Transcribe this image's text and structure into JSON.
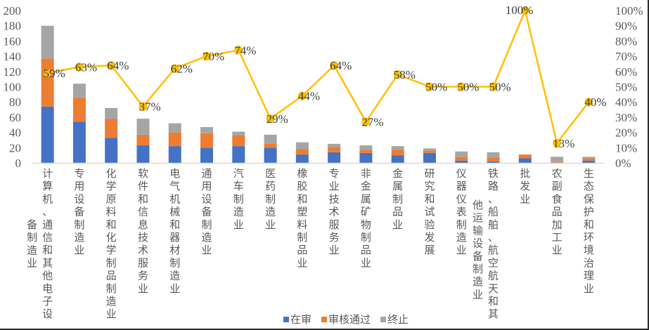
{
  "chart_data": {
    "type": "bar",
    "subtype": "stacked bar + line (dual axis)",
    "title": "",
    "xlabel": "",
    "ylabel": "",
    "ylim": [
      0,
      200
    ],
    "yticks": [
      0,
      20,
      40,
      60,
      80,
      100,
      120,
      140,
      160,
      180,
      200
    ],
    "y2lim": [
      0,
      100
    ],
    "y2ticks": [
      "0%",
      "10%",
      "20%",
      "30%",
      "40%",
      "50%",
      "60%",
      "70%",
      "80%",
      "90%",
      "100%"
    ],
    "grid": false,
    "legend_position": "bottom",
    "categories": [
      "计算机、通信和其他电子设备制造业",
      "专用设备制造业",
      "化学原料和化学制品制造业",
      "软件和信息技术服务业",
      "电气机械和器材制造业",
      "通用设备制造业",
      "汽车制造业",
      "医药制造业",
      "橡胶和塑料制品业",
      "专业技术服务业",
      "非金属矿物制品业",
      "金属制品业",
      "研究和试验发展",
      "仪器仪表制造业",
      "铁路、船舶、航空航天和其他运输设备制造业",
      "批发业",
      "农副食品加工业",
      "生态保护和环境治理业"
    ],
    "category_lines": [
      [
        "计算机、通信和其他电子设",
        "备制造业"
      ],
      [
        "专用设备制造业"
      ],
      [
        "化学原料和化学制品制造业"
      ],
      [
        "软件和信息技术服务业"
      ],
      [
        "电气机械和器材制造业"
      ],
      [
        "通用设备制造业"
      ],
      [
        "汽车制造业"
      ],
      [
        "医药制造业"
      ],
      [
        "橡胶和塑料制品业"
      ],
      [
        "专业技术服务业"
      ],
      [
        "非金属矿物制品业"
      ],
      [
        "金属制品业"
      ],
      [
        "研究和试验发展"
      ],
      [
        "仪器仪表制造业"
      ],
      [
        "铁路、船舶、航空航天和其",
        "他运输设备制造业"
      ],
      [
        "批发业"
      ],
      [
        "农副食品加工业"
      ],
      [
        "生态保护和环境治理业"
      ]
    ],
    "series": [
      {
        "name": "在审",
        "type": "bar",
        "color": "#4472C4",
        "values": [
          74,
          54,
          33,
          23,
          22,
          20,
          22,
          20,
          11,
          14,
          13,
          10,
          13,
          3,
          2,
          6,
          0,
          3
        ]
      },
      {
        "name": "审核通过",
        "type": "bar",
        "color": "#ED7D31",
        "values": [
          63,
          32,
          25,
          14,
          18,
          19,
          14,
          5,
          7,
          7,
          4,
          7,
          3,
          5,
          5,
          5,
          1,
          3
        ]
      },
      {
        "name": "终止",
        "type": "bar",
        "color": "#A5A5A5",
        "values": [
          43,
          18,
          14,
          21,
          12,
          8,
          5,
          12,
          9,
          4,
          6,
          5,
          3,
          7,
          7,
          0,
          7,
          2
        ]
      },
      {
        "name": "通过率",
        "type": "line",
        "axis": "right",
        "color": "#FFC000",
        "values": [
          59,
          63,
          64,
          37,
          62,
          70,
          74,
          29,
          44,
          64,
          27,
          58,
          50,
          50,
          50,
          100,
          13,
          40
        ],
        "labels": [
          "59%",
          "63%",
          "64%",
          "37%",
          "62%",
          "70%",
          "74%",
          "29%",
          "44%",
          "64%",
          "27%",
          "58%",
          "50%",
          "50%",
          "50%",
          "100%",
          "13%",
          "40%"
        ]
      }
    ]
  },
  "legend": {
    "items": [
      {
        "label": "在审",
        "color": "#4472C4"
      },
      {
        "label": "审核通过",
        "color": "#ED7D31"
      },
      {
        "label": "终止",
        "color": "#A5A5A5"
      }
    ]
  }
}
